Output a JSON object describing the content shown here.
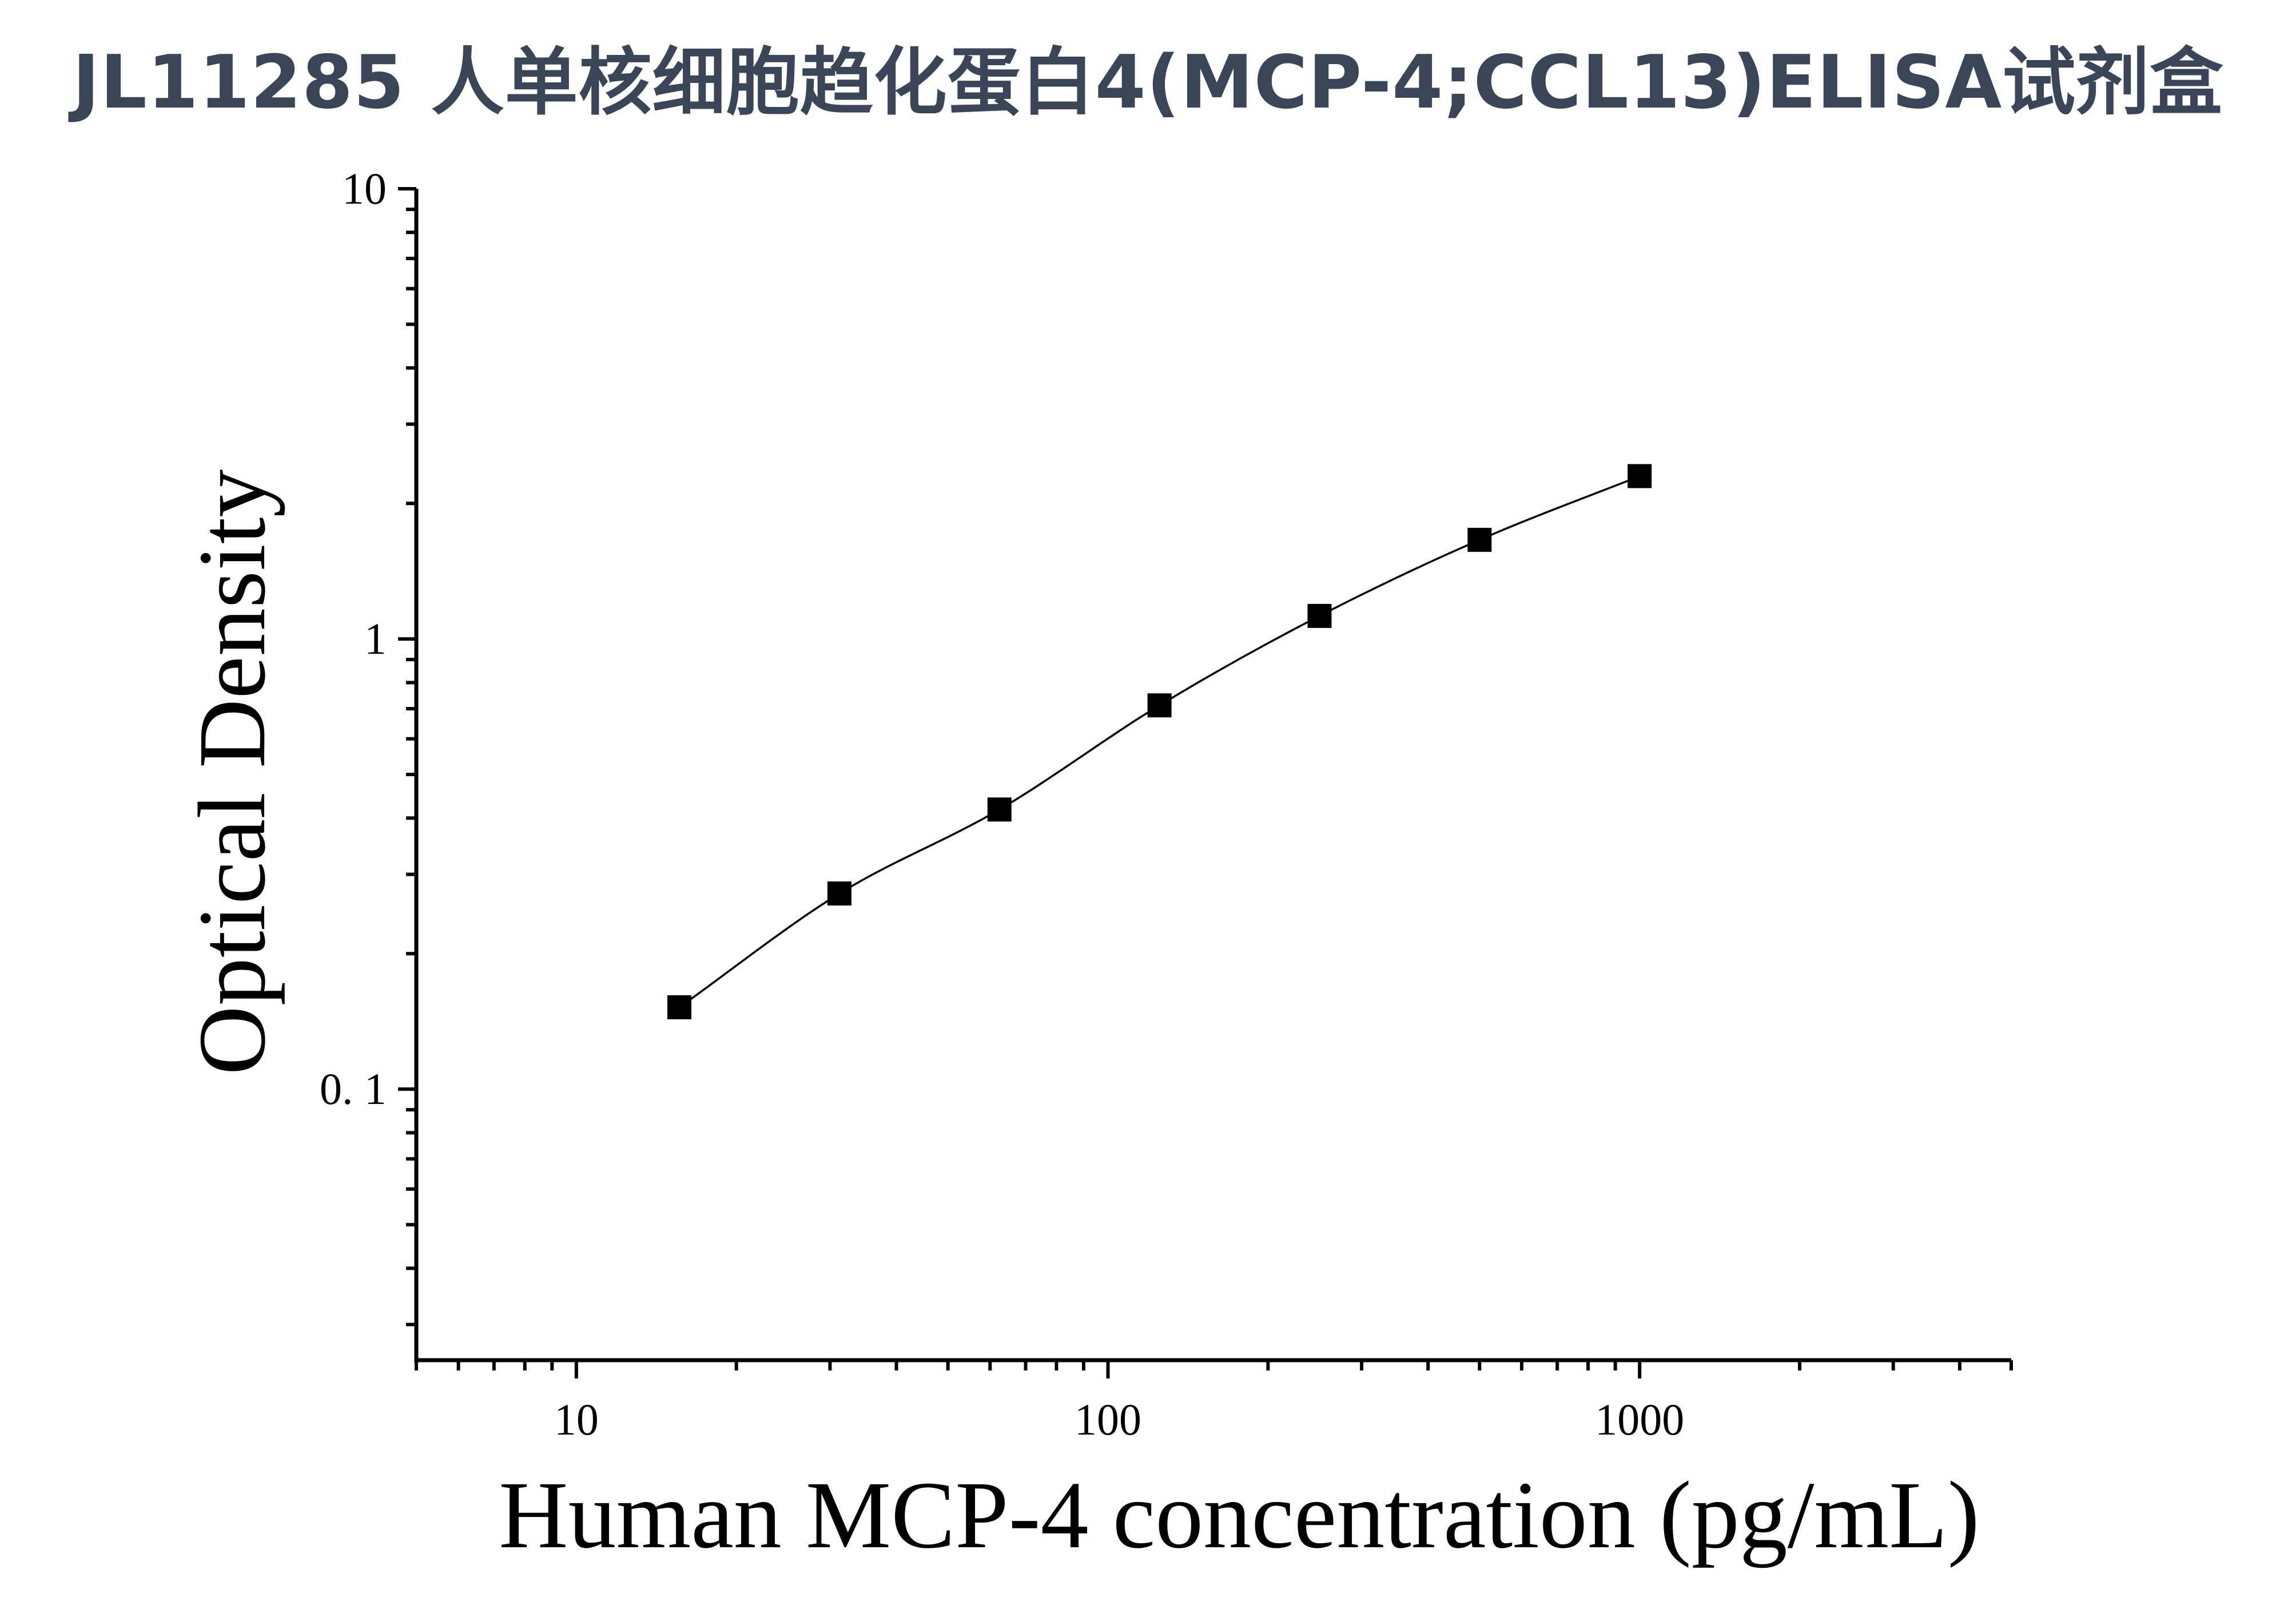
{
  "chart_data": {
    "type": "scatter",
    "title": "JL11285 人单核细胞趋化蛋白4(MCP-4;CCL13)ELISA试剂盒",
    "xlabel": "Human MCP-4 concentration (pg/mL)",
    "ylabel": "Optical Density",
    "x_scale": "log",
    "y_scale": "log",
    "xlim": [
      5,
      5000
    ],
    "ylim": [
      0.025,
      10
    ],
    "x_ticks": [
      10,
      100,
      1000
    ],
    "x_tick_labels": [
      "10",
      "100",
      "1000"
    ],
    "y_ticks": [
      0.1,
      1,
      10
    ],
    "y_tick_labels": [
      "0. 1",
      "1",
      "10"
    ],
    "grid": false,
    "series": [
      {
        "marker": "square",
        "color": "#000000",
        "fit_line": true,
        "x": [
          15.625,
          31.25,
          62.5,
          125,
          250,
          500,
          1000
        ],
        "y": [
          0.152,
          0.272,
          0.418,
          0.712,
          1.125,
          1.66,
          2.3
        ]
      }
    ]
  }
}
